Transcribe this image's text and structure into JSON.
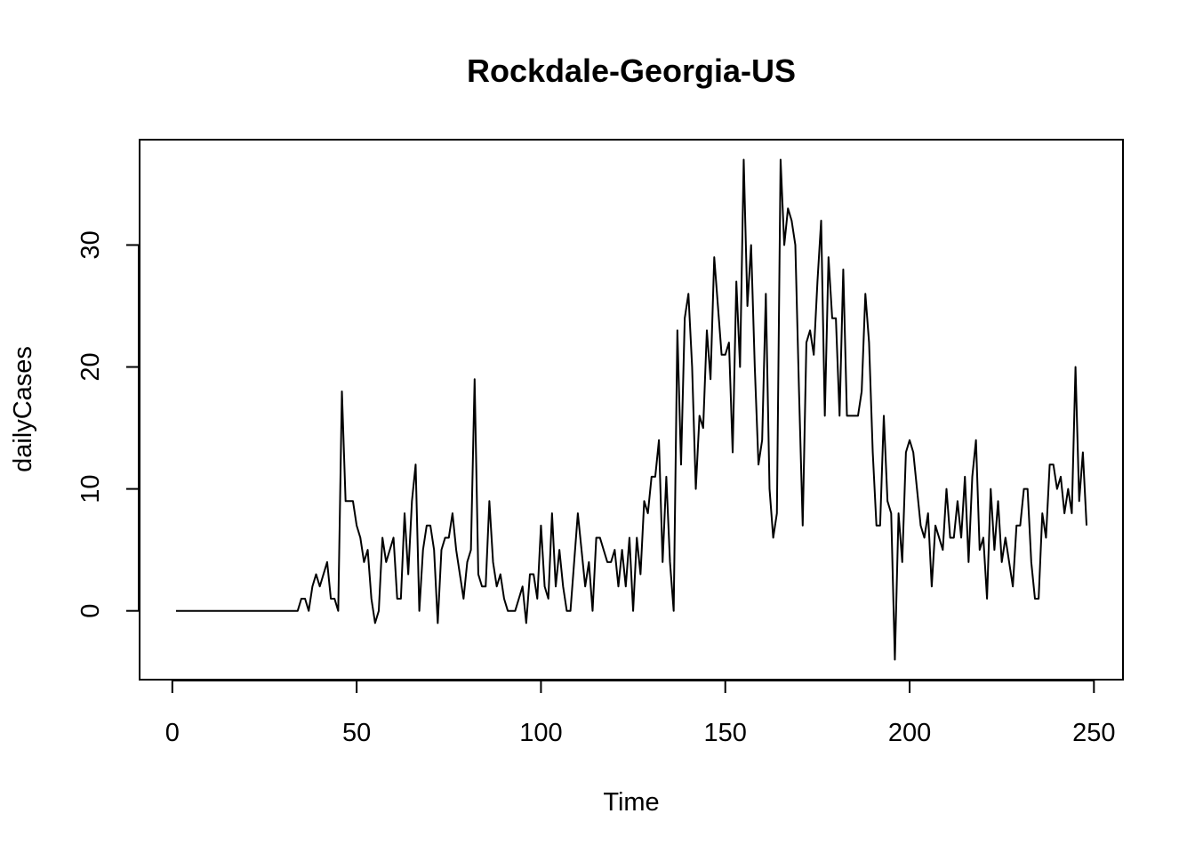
{
  "chart_data": {
    "type": "line",
    "title": "Rockdale-Georgia-US",
    "xlabel": "Time",
    "ylabel": "dailyCases",
    "xlim": [
      -8.88,
      257.88
    ],
    "ylim": [
      -5.64,
      38.64
    ],
    "xticks": [
      0,
      50,
      100,
      150,
      200,
      250
    ],
    "yticks": [
      0,
      10,
      20,
      30
    ],
    "grid": false,
    "legend": "none",
    "line_color": "#000000",
    "series": [
      {
        "x_start": 1,
        "values": [
          0,
          0,
          0,
          0,
          0,
          0,
          0,
          0,
          0,
          0,
          0,
          0,
          0,
          0,
          0,
          0,
          0,
          0,
          0,
          0,
          0,
          0,
          0,
          0,
          0,
          0,
          0,
          0,
          0,
          0,
          0,
          0,
          0,
          0,
          1,
          1,
          0,
          2,
          3,
          2,
          3,
          4,
          1,
          1,
          0,
          18,
          9,
          9,
          9,
          7,
          6,
          4,
          5,
          1,
          -1,
          0,
          6,
          4,
          5,
          6,
          1,
          1,
          8,
          3,
          9,
          12,
          0,
          5,
          7,
          7,
          5,
          -1,
          5,
          6,
          6,
          8,
          5,
          3,
          1,
          4,
          5,
          19,
          3,
          2,
          2,
          9,
          4,
          2,
          3,
          1,
          0,
          0,
          0,
          1,
          2,
          -1,
          3,
          3,
          1,
          7,
          2,
          1,
          8,
          2,
          5,
          2,
          0,
          0,
          4,
          8,
          5,
          2,
          4,
          0,
          6,
          6,
          5,
          4,
          4,
          5,
          2,
          5,
          2,
          6,
          0,
          6,
          3,
          9,
          8,
          11,
          11,
          14,
          4,
          11,
          4,
          0,
          23,
          12,
          24,
          26,
          20,
          10,
          16,
          15,
          23,
          19,
          29,
          25,
          21,
          21,
          22,
          13,
          27,
          20,
          37,
          25,
          30,
          20,
          12,
          14,
          26,
          10,
          6,
          8,
          37,
          30,
          33,
          32,
          30,
          18,
          7,
          22,
          23,
          21,
          27,
          32,
          16,
          29,
          24,
          24,
          16,
          28,
          16,
          16,
          16,
          16,
          18,
          26,
          22,
          13,
          7,
          7,
          16,
          9,
          8,
          -4,
          8,
          4,
          13,
          14,
          13,
          10,
          7,
          6,
          8,
          2,
          7,
          6,
          5,
          10,
          6,
          6,
          9,
          6,
          11,
          4,
          11,
          14,
          5,
          6,
          1,
          10,
          5,
          9,
          4,
          6,
          4,
          2,
          7,
          7,
          10,
          10,
          4,
          1,
          1,
          8,
          6,
          12,
          12,
          10,
          11,
          8,
          10,
          8,
          20,
          9,
          13,
          7
        ]
      }
    ]
  }
}
